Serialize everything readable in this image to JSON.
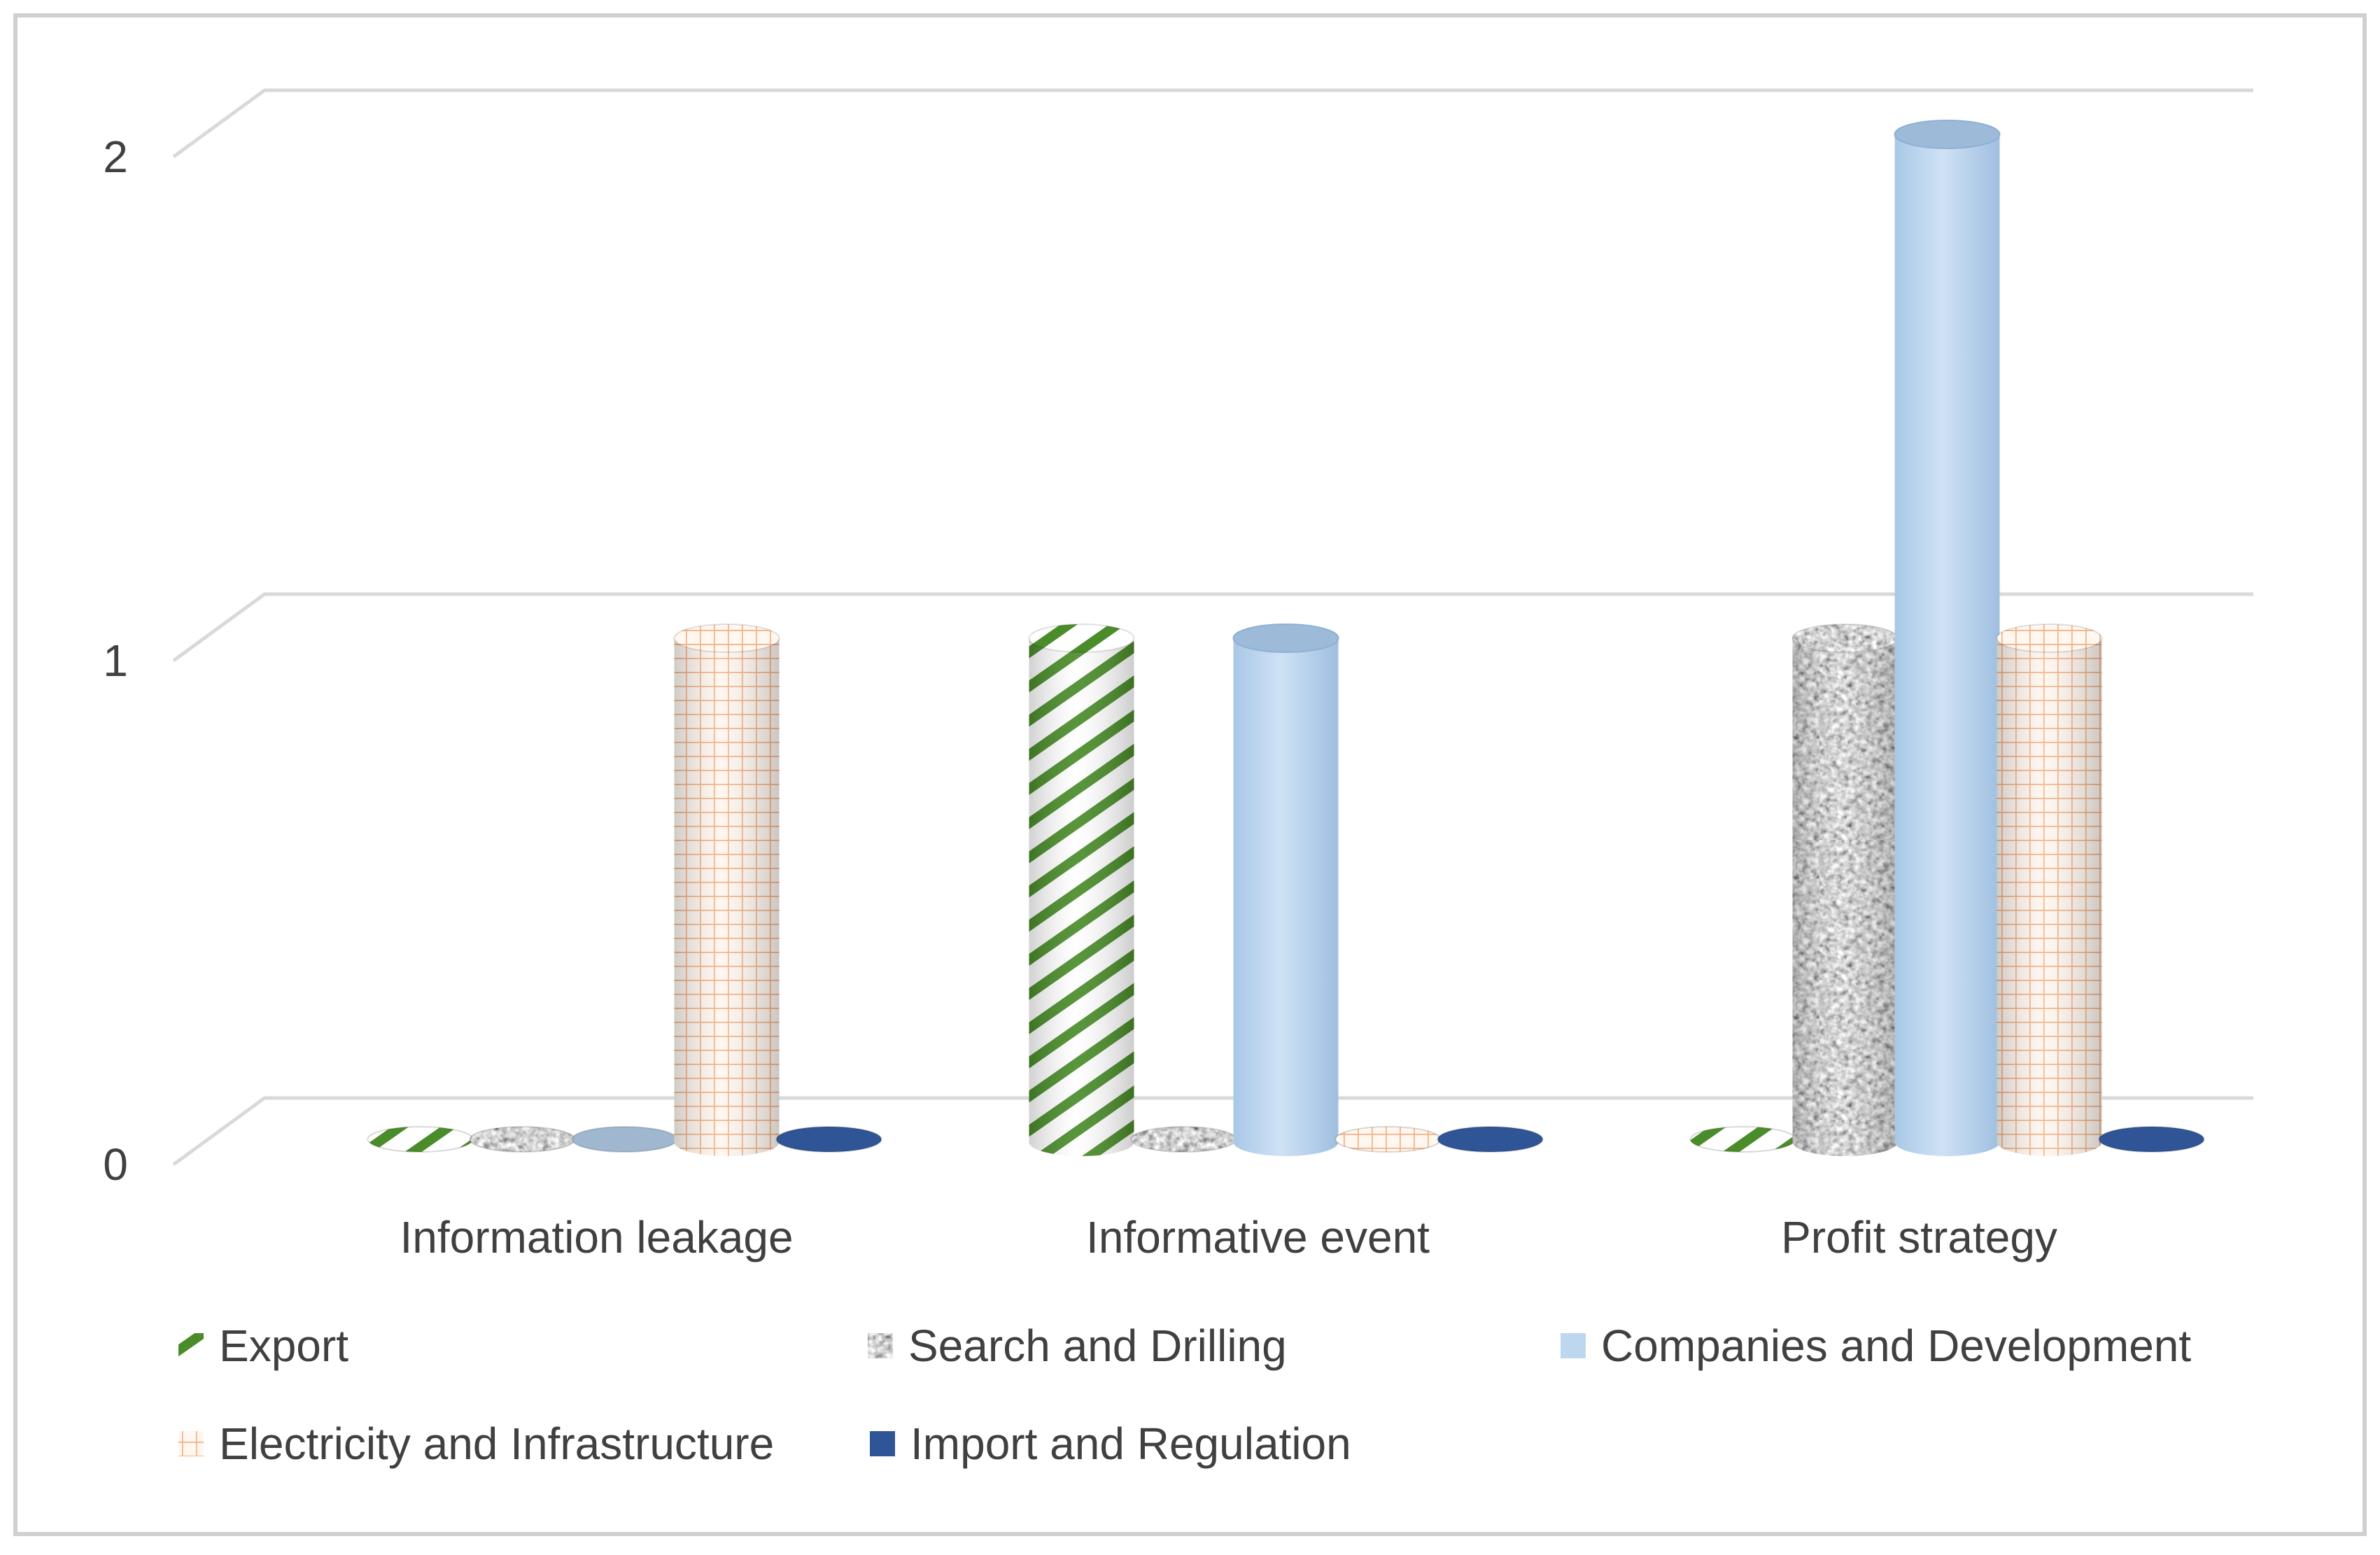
{
  "chart_data": {
    "type": "bar",
    "style": "3d-cylinder",
    "title": "",
    "xlabel": "",
    "ylabel": "",
    "ylim": [
      0,
      2
    ],
    "yticks": [
      0,
      1,
      2
    ],
    "grid": true,
    "legend_position": "bottom",
    "categories": [
      "Information leakage",
      "Informative event",
      "Profit strategy"
    ],
    "series": [
      {
        "name": "Export",
        "values": [
          0,
          1,
          0
        ],
        "color": "#4a8c2a",
        "pattern": "diagonal-stripes"
      },
      {
        "name": "Search and Drilling",
        "values": [
          0,
          0,
          1
        ],
        "color": "#7f7f7f",
        "pattern": "granite"
      },
      {
        "name": "Companies and Development",
        "values": [
          0,
          1,
          2
        ],
        "color": "#bdd7ee",
        "pattern": "solid"
      },
      {
        "name": "Electricity and Infrastructure",
        "values": [
          1,
          0,
          1
        ],
        "color": "#f4b183",
        "pattern": "grid"
      },
      {
        "name": "Import and Regulation",
        "values": [
          0,
          0,
          0
        ],
        "color": "#2f5597",
        "pattern": "solid"
      }
    ]
  }
}
